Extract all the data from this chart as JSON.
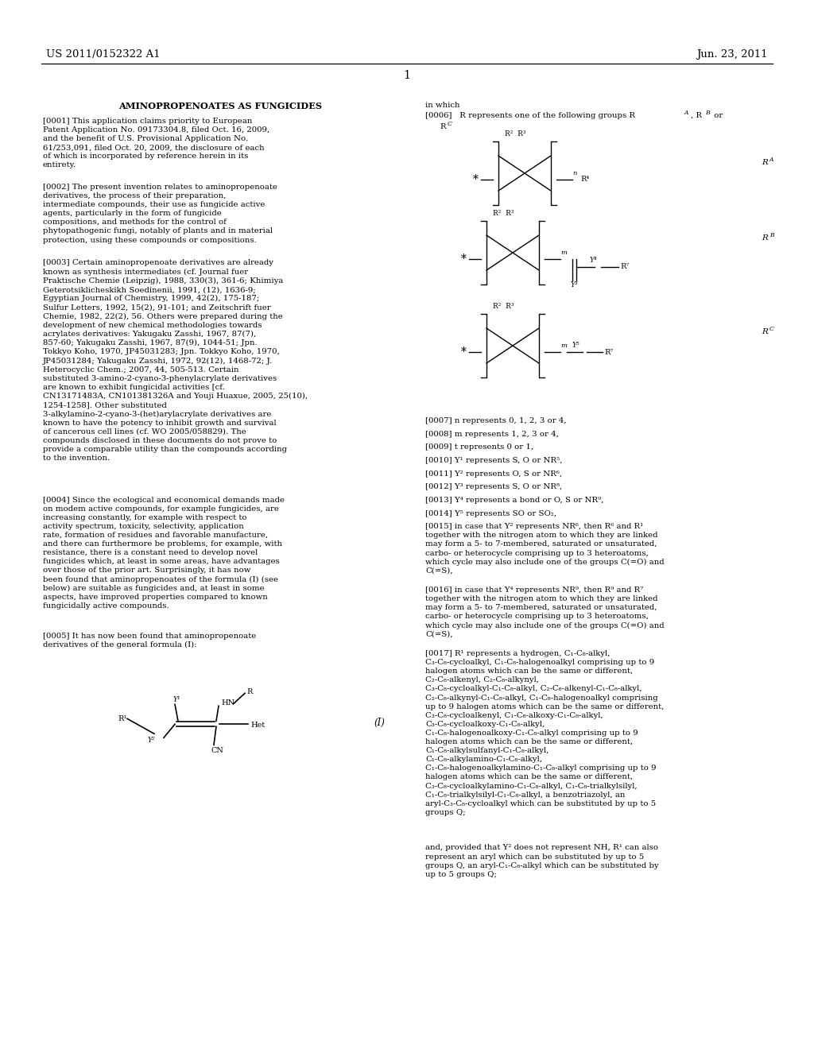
{
  "title_left": "US 2011/0152322 A1",
  "title_right": "Jun. 23, 2011",
  "page_number": "1",
  "doc_title": "AMINOPROPENOATES AS FUNGICIDES",
  "para0001": "[0001]   This application claims priority to European Patent Application No. 09173304.8, filed Oct. 16, 2009, and the benefit of U.S. Provisional Application No. 61/253,091, filed Oct. 20, 2009, the disclosure of each of which is incorporated by reference herein in its entirety.",
  "para0002": "[0002]   The present invention relates to aminopropenoate derivatives, the process of their preparation, intermediate compounds, their use as fungicide active agents, particularly in the form of fungicide compositions, and methods for the control of phytopathogenic fungi, notably of plants and in material protection, using these compounds or compositions.",
  "para0003": "[0003]   Certain aminopropenoate derivatives are already known as synthesis intermediates (cf. Journal fuer Praktische Chemie (Leipzig), 1988, 330(3), 361-6; Khimiya Geterotsiklicheskikh Soedinenii, 1991, (12), 1636-9; Egyptian Journal of Chemistry, 1999, 42(2), 175-187; Sulfur Letters, 1992, 15(2), 91-101; and Zeitschrift fuer Chemie, 1982, 22(2), 56. Others were prepared during the development of new chemical methodologies towards acrylates derivatives: Yakugaku Zasshi, 1967, 87(7), 857-60; Yakugaku Zasshi, 1967, 87(9), 1044-51; Jpn. Tokkyo Koho, 1970, JP45031283; Jpn. Tokkyo Koho, 1970, JP45031284; Yakugaku Zasshi, 1972, 92(12), 1468-72; J. Heterocyclic Chem.; 2007, 44, 505-513. Certain substituted 3-amino-2-cyano-3-phenylacrylate derivatives are known to exhibit fungicidal activities [cf. CN13171483A, CN101381326A and Youji Huaxue, 2005, 25(10), 1254-1258]. Other substituted 3-alkylamino-2-cyano-3-(het)arylacrylate derivatives are known to have the potency to inhibit growth and survival of cancerous cell lines (cf. WO 2005/058829). The compounds disclosed in these documents do not prove to provide a comparable utility than the compounds according to the invention.",
  "para0004": "[0004]   Since the ecological and economical demands made on modem active compounds, for example fungicides, are increasing constantly, for example with respect to activity spectrum, toxicity, selectivity, application rate, formation of residues and favorable manufacture, and there can furthermore be problems, for example, with resistance, there is a constant need to develop novel fungicides which, at least in some areas, have advantages over those of the prior art. Surprisingly, it has now been found that aminopropenoates of the formula (I) (see below) are suitable as fungicides and, at least in some aspects, have improved properties compared to known fungicidally active compounds.",
  "para0005": "[0005]   It has now been found that aminopropenoate derivatives of the general formula (I):",
  "in_which": "in which",
  "para0006_a": "[0006]   R represents one of the following groups R",
  "para0006_b": "R",
  "para0007": "[0007]   n represents 0, 1, 2, 3 or 4,",
  "para0008": "[0008]   m represents 1, 2, 3 or 4,",
  "para0009": "[0009]   t represents 0 or 1,",
  "para0010": "[0010]   Y¹ represents S, O or NR⁵,",
  "para0011": "[0011]   Y² represents O, S or NR⁶,",
  "para0012": "[0012]   Y³ represents S, O or NR⁸,",
  "para0013": "[0013]   Y⁴ represents a bond or O, S or NR⁹,",
  "para0014": "[0014]   Y⁵ represents SO or SO₂,",
  "para0015": "[0015]   in case that Y² represents NR⁶, then R⁶ and R¹ together with the nitrogen atom to which they are linked may form a 5- to 7-membered, saturated or unsaturated, carbo- or heterocycle comprising up to 3 heteroatoms, which cycle may also include one of the groups C(=O) and C(=S),",
  "para0016": "[0016]   in case that Y⁴ represents NR⁹, then R⁹ and R⁷ together with the nitrogen atom to which they are linked may form a 5- to 7-membered, saturated or unsaturated, carbo- or heterocycle comprising up to 3 heteroatoms, which cycle may also include one of the groups C(=O) and C(=S),",
  "para0017": "[0017]   R¹ represents a hydrogen, C₁-C₈-alkyl, C₃-C₈-cycloalkyl, C₁-C₈-halogenoalkyl comprising up to 9 halogen atoms which can be the same or different, C₂-C₈-alkenyl, C₂-C₈-alkynyl, C₃-C₈-cycloalkyl-C₁-C₈-alkyl, C₂-C₈-alkenyl-C₁-C₈-alkyl, C₂-C₈-alkynyl-C₁-C₈-alkyl, C₁-C₈-halogenoalkyl comprising up to 9 halogen atoms which can be the same or different, C₃-C₈-cycloalkenyl, C₁-C₈-alkoxy-C₁-C₈-alkyl, C₃-C₈-cycloalkoxy-C₁-C₈-alkyl, C₁-C₈-halogenoalkoxy-C₁-C₈-alkyl comprising up to 9 halogen atoms which can be the same or different, C₁-C₈-alkylsulfanyl-C₁-C₈-alkyl,  C₁-C₈-alkylamino-C₁-C₈-alkyl, C₁-C₈-halogenoalkylamino-C₁-C₈-alkyl comprising up to 9 halogen atoms which can be the same or different, C₃-C₈-cycloalkylamino-C₁-C₈-alkyl, C₁-C₈-trialkylsilyl, C₁-C₈-trialkylsilyl-C₁-C₈-alkyl, a benzotriazolyl, an aryl-C₃-C₈-cycloalkyl which can be substituted by up to 5 groups Q;",
  "para0017b": "and, provided that Y² does not represent NH, R¹ can also represent an aryl which can be substituted by up to 5 groups Q, an aryl-C₁-C₈-alkyl which can be substituted by up to 5 groups Q;"
}
